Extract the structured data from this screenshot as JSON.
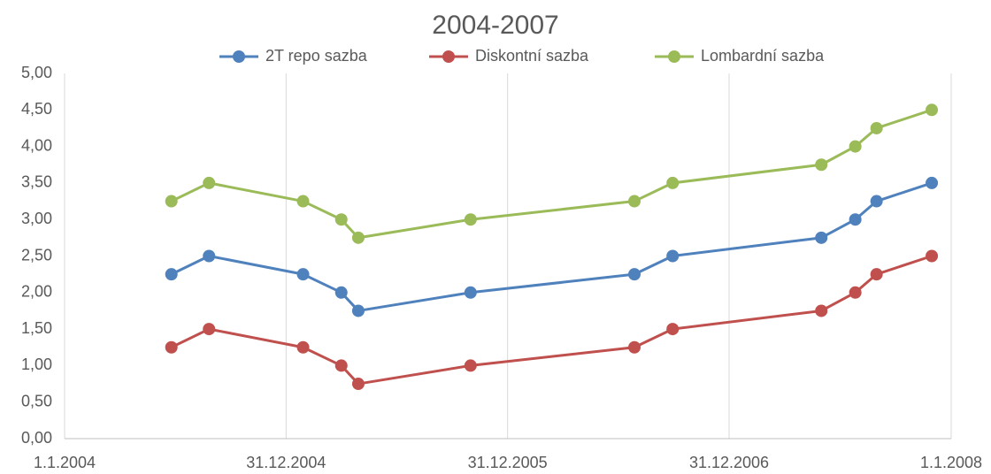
{
  "chart_data": {
    "type": "line",
    "title": "2004-2007",
    "x": [
      "25.6.2004",
      "26.8.2004",
      "28.1.2005",
      "1.4.2005",
      "29.4.2005",
      "31.10.2005",
      "28.7.2006",
      "29.9.2006",
      "1.6.2007",
      "27.7.2007",
      "31.8.2007",
      "30.11.2007"
    ],
    "series": [
      {
        "name": "2T repo sazba",
        "color": "#4f81bd",
        "values": [
          2.25,
          2.5,
          2.25,
          2.0,
          1.75,
          2.0,
          2.25,
          2.5,
          2.75,
          3.0,
          3.25,
          3.5
        ]
      },
      {
        "name": "Diskontní sazba",
        "color": "#c0504d",
        "values": [
          1.25,
          1.5,
          1.25,
          1.0,
          0.75,
          1.0,
          1.25,
          1.5,
          1.75,
          2.0,
          2.25,
          2.5
        ]
      },
      {
        "name": "Lombardní sazba",
        "color": "#9bbb59",
        "values": [
          3.25,
          3.5,
          3.25,
          3.0,
          2.75,
          3.0,
          3.25,
          3.5,
          3.75,
          4.0,
          4.25,
          4.5
        ]
      }
    ],
    "xlim": [
      "1.1.2004",
      "1.1.2008"
    ],
    "xticks": [
      "1.1.2004",
      "31.12.2004",
      "31.12.2005",
      "31.12.2006",
      "1.1.2008"
    ],
    "ylim": [
      0,
      5
    ],
    "yticks": [
      {
        "value": 0,
        "label": "0,00"
      },
      {
        "value": 0.5,
        "label": "0,50"
      },
      {
        "value": 1,
        "label": "1,00"
      },
      {
        "value": 1.5,
        "label": "1,50"
      },
      {
        "value": 2,
        "label": "2,00"
      },
      {
        "value": 2.5,
        "label": "2,50"
      },
      {
        "value": 3,
        "label": "3,00"
      },
      {
        "value": 3.5,
        "label": "3,50"
      },
      {
        "value": 4,
        "label": "4,00"
      },
      {
        "value": 4.5,
        "label": "4,50"
      },
      {
        "value": 5,
        "label": "5,00"
      }
    ],
    "grid": "x",
    "legend": "top"
  }
}
